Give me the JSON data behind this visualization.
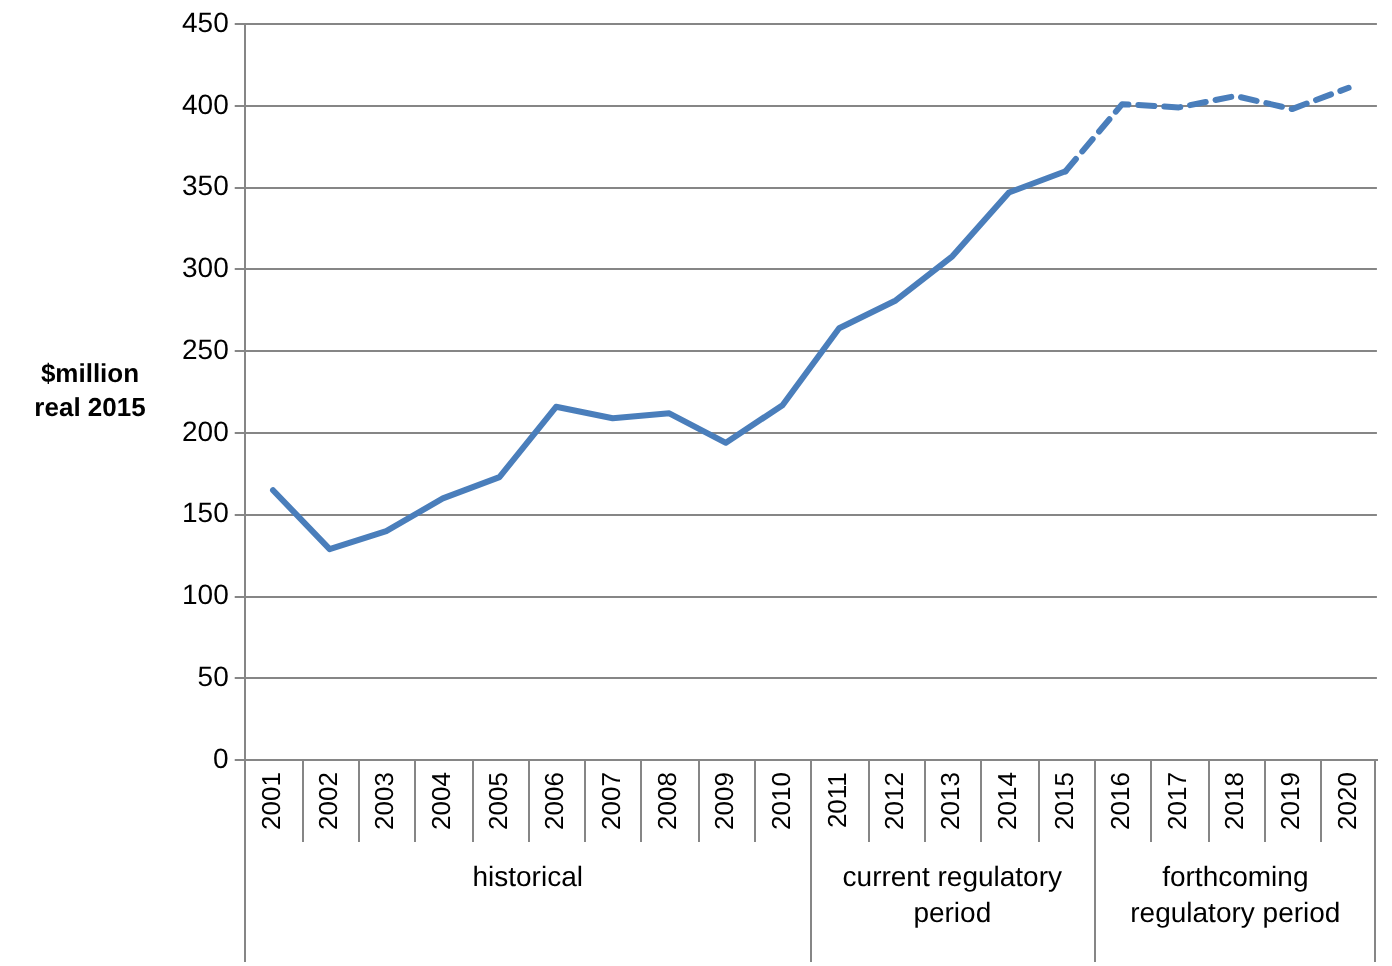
{
  "chart_data": {
    "type": "line",
    "ylabel": "$million real 2015",
    "categories": [
      "2001",
      "2002",
      "2003",
      "2004",
      "2005",
      "2006",
      "2007",
      "2008",
      "2009",
      "2010",
      "2011",
      "2012",
      "2013",
      "2014",
      "2015",
      "2016",
      "2017",
      "2018",
      "2019",
      "2020"
    ],
    "series": [
      {
        "color": "#4a7ebb",
        "line_style": "solid",
        "values": [
          165,
          129,
          140,
          160,
          173,
          216,
          209,
          212,
          194,
          217,
          264,
          281,
          308,
          347,
          360,
          null,
          null,
          null,
          null,
          null
        ]
      },
      {
        "color": "#4a7ebb",
        "line_style": "dashed",
        "values": [
          null,
          null,
          null,
          null,
          null,
          null,
          null,
          null,
          null,
          null,
          null,
          null,
          null,
          null,
          360,
          401,
          399,
          406,
          398,
          411
        ]
      }
    ],
    "ylim": [
      0,
      450
    ],
    "yticks": [
      0,
      50,
      100,
      150,
      200,
      250,
      300,
      350,
      400,
      450
    ],
    "grid": "y",
    "marker": "none",
    "annotations": [
      "historical",
      "current regulatory period",
      "forthcoming regulatory period"
    ]
  }
}
